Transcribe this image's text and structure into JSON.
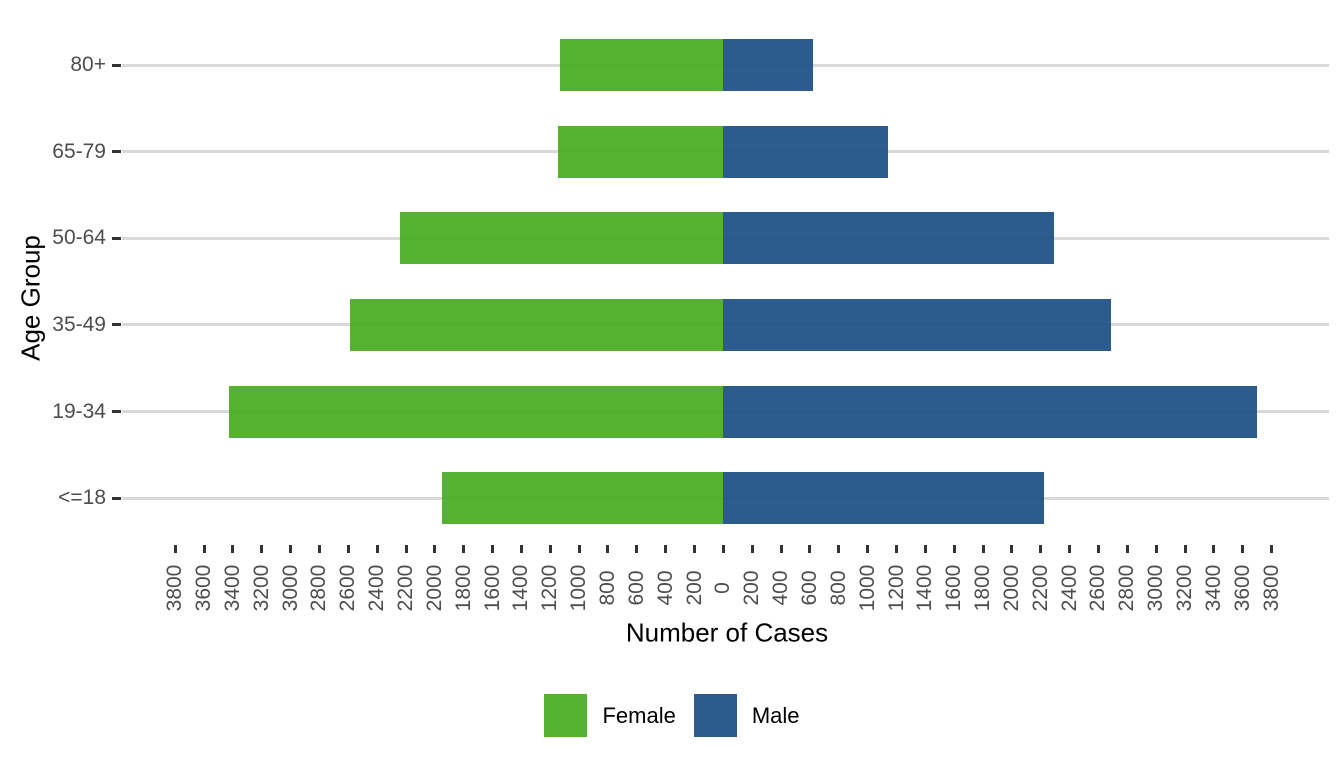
{
  "chart_data": {
    "type": "bar",
    "variant": "population-pyramid-horizontal-diverging",
    "title": "",
    "xlabel": "Number of Cases",
    "ylabel": "Age Group",
    "categories_top_to_bottom": [
      "80+",
      "65-79",
      "50-64",
      "35-49",
      "19-34",
      "<=18"
    ],
    "series": [
      {
        "name": "Female",
        "side": "left",
        "color": "#4BAC26",
        "values": [
          1130,
          1150,
          2240,
          2590,
          3430,
          1950
        ]
      },
      {
        "name": "Male",
        "side": "right",
        "color": "#1F5186",
        "values": [
          620,
          1140,
          2290,
          2690,
          3700,
          2220
        ]
      }
    ],
    "x_axis": {
      "min": -3800,
      "max": 3800,
      "tick_step": 200,
      "labels_absolute_value": true,
      "tick_label_rotation_deg": 90
    },
    "grid": {
      "horizontal": true,
      "vertical": false
    },
    "legend_position": "bottom"
  }
}
